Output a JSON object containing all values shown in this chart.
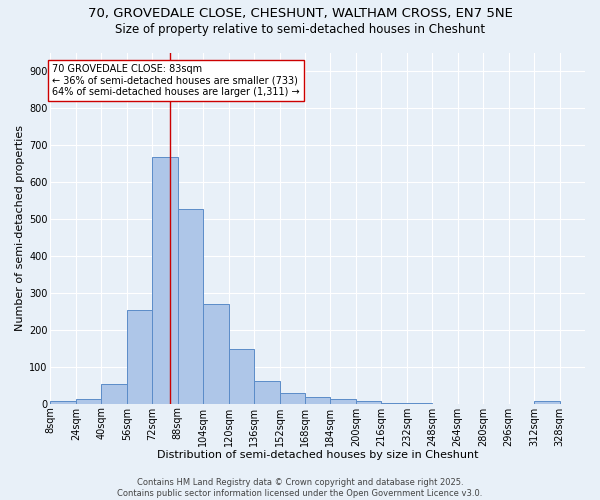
{
  "title1": "70, GROVEDALE CLOSE, CHESHUNT, WALTHAM CROSS, EN7 5NE",
  "title2": "Size of property relative to semi-detached houses in Cheshunt",
  "xlabel": "Distribution of semi-detached houses by size in Cheshunt",
  "ylabel": "Number of semi-detached properties",
  "bin_labels": [
    "8sqm",
    "24sqm",
    "40sqm",
    "56sqm",
    "72sqm",
    "88sqm",
    "104sqm",
    "120sqm",
    "136sqm",
    "152sqm",
    "168sqm",
    "184sqm",
    "200sqm",
    "216sqm",
    "232sqm",
    "248sqm",
    "264sqm",
    "280sqm",
    "296sqm",
    "312sqm",
    "328sqm"
  ],
  "bin_edges": [
    8,
    24,
    40,
    56,
    72,
    88,
    104,
    120,
    136,
    152,
    168,
    184,
    200,
    216,
    232,
    248,
    264,
    280,
    296,
    312,
    328
  ],
  "bar_heights": [
    7,
    12,
    53,
    253,
    668,
    527,
    270,
    148,
    62,
    28,
    18,
    12,
    8,
    3,
    3,
    0,
    0,
    0,
    0,
    8
  ],
  "bar_color": "#aec6e8",
  "bar_edge_color": "#5b8cc8",
  "bg_color": "#e8f0f8",
  "grid_color": "#ffffff",
  "vline_x": 83,
  "vline_color": "#cc0000",
  "annotation_text": "70 GROVEDALE CLOSE: 83sqm\n← 36% of semi-detached houses are smaller (733)\n64% of semi-detached houses are larger (1,311) →",
  "annotation_box_color": "#ffffff",
  "annotation_box_edge": "#cc0000",
  "ylim": [
    0,
    950
  ],
  "yticks": [
    0,
    100,
    200,
    300,
    400,
    500,
    600,
    700,
    800,
    900
  ],
  "footer_text": "Contains HM Land Registry data © Crown copyright and database right 2025.\nContains public sector information licensed under the Open Government Licence v3.0.",
  "title_fontsize": 9.5,
  "subtitle_fontsize": 8.5,
  "axis_label_fontsize": 8,
  "tick_fontsize": 7,
  "annotation_fontsize": 7,
  "footer_fontsize": 6
}
